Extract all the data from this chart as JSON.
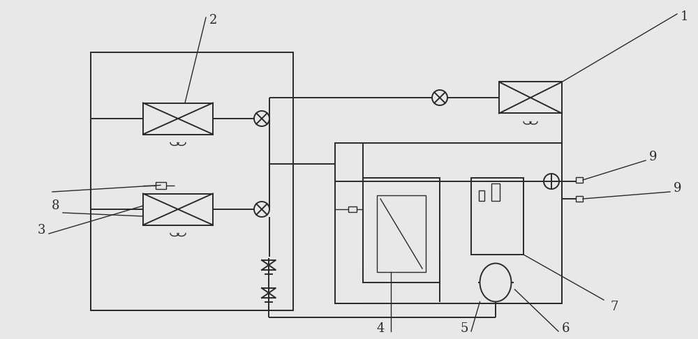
{
  "bg_color": "#e8e8e8",
  "line_color": "#2a2a2a",
  "lw": 1.4,
  "lw_thin": 1.0,
  "fs": 13
}
